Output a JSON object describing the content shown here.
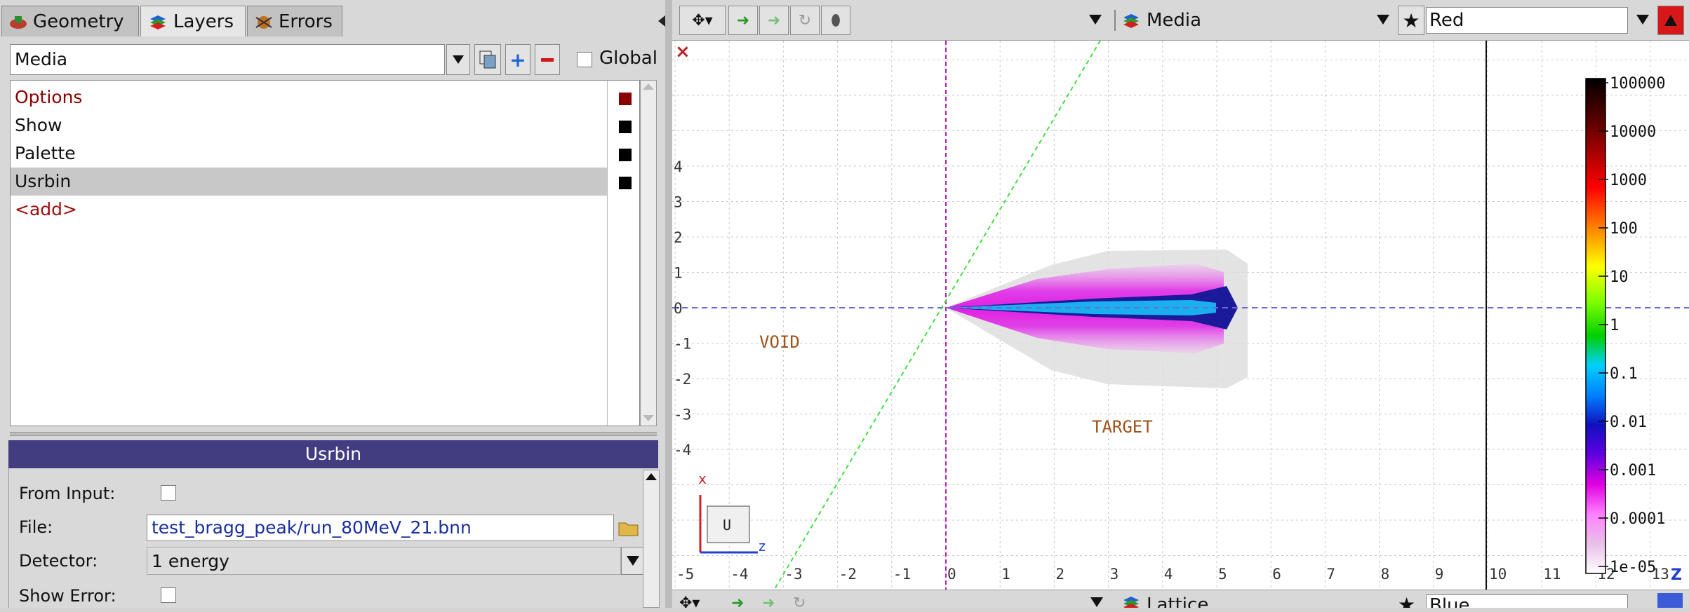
{
  "tabs": [
    {
      "label": "Geometry",
      "icon": "geometry-icon"
    },
    {
      "label": "Layers",
      "icon": "layers-icon"
    },
    {
      "label": "Errors",
      "icon": "errors-icon"
    }
  ],
  "layer_selector": {
    "value": "Media",
    "global_label": "Global"
  },
  "layers": [
    {
      "label": "Options",
      "color": "#8b0000",
      "swatch": "#8b0000"
    },
    {
      "label": "Show",
      "color": "#111111",
      "swatch": "#000000"
    },
    {
      "label": "Palette",
      "color": "#111111",
      "swatch": "#000000"
    },
    {
      "label": "Usrbin",
      "color": "#111111",
      "swatch": "#000000",
      "selected": true
    },
    {
      "label": "<add>",
      "color": "#a01010",
      "swatch": null
    }
  ],
  "properties": {
    "title": "Usrbin",
    "from_input_label": "From Input:",
    "file_label": "File:",
    "file_value": "test_bragg_peak/run_80MeV_21.bnn",
    "detector_label": "Detector:",
    "detector_value": "1 energy",
    "show_error_label": "Show Error:"
  },
  "viewer_top": {
    "layer": "Media",
    "color": "Red",
    "accent": "#d81818"
  },
  "viewer_bottom": {
    "layer": "Lattice",
    "color": "Blue",
    "accent": "#3b5bd9"
  },
  "plot": {
    "x_ticks": [
      "-5",
      "-4",
      "-3",
      "-2",
      "-1",
      "0",
      "1",
      "2",
      "3",
      "4",
      "5",
      "6",
      "7",
      "8",
      "9",
      "10",
      "11",
      "12",
      "13"
    ],
    "y_ticks": [
      "4",
      "3",
      "2",
      "1",
      "0",
      "-1",
      "-2",
      "-3",
      "-4"
    ],
    "region_void": "VOID",
    "region_target": "TARGET",
    "axes_labels": {
      "x": "x",
      "z": "z",
      "u": "U"
    },
    "colorbar_labels": [
      "100000",
      "10000",
      "1000",
      "100",
      "10",
      "1",
      "0.1",
      "0.01",
      "0.001",
      "0.0001",
      "1e-05"
    ],
    "corner_icon_top": "close-icon",
    "corner_icon_bottom": "z-axis-icon"
  }
}
